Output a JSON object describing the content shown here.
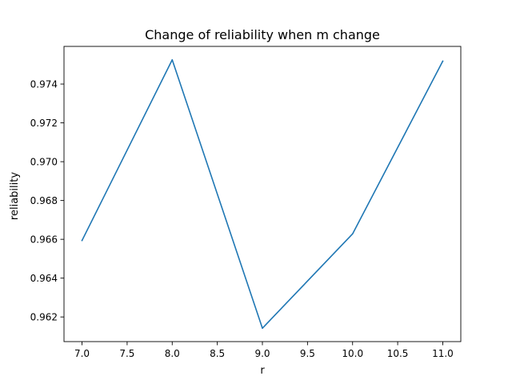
{
  "chart_data": {
    "type": "line",
    "title": "Change of reliability when m change",
    "xlabel": "r",
    "ylabel": "reliability",
    "xlim": [
      6.8,
      11.2
    ],
    "ylim": [
      0.96073,
      0.97594
    ],
    "xticks": [
      7.0,
      7.5,
      8.0,
      8.5,
      9.0,
      9.5,
      10.0,
      10.5,
      11.0
    ],
    "xtick_labels": [
      "7.0",
      "7.5",
      "8.0",
      "8.5",
      "9.0",
      "9.5",
      "10.0",
      "10.5",
      "11.0"
    ],
    "yticks": [
      0.962,
      0.964,
      0.966,
      0.968,
      0.97,
      0.972,
      0.974
    ],
    "ytick_labels": [
      "0.962",
      "0.964",
      "0.966",
      "0.968",
      "0.970",
      "0.972",
      "0.974"
    ],
    "grid": false,
    "series": [
      {
        "color": "#1f77b4",
        "x": [
          7,
          8,
          9,
          10,
          11
        ],
        "y": [
          0.96594,
          0.97525,
          0.96142,
          0.96628,
          0.97518
        ]
      }
    ]
  }
}
